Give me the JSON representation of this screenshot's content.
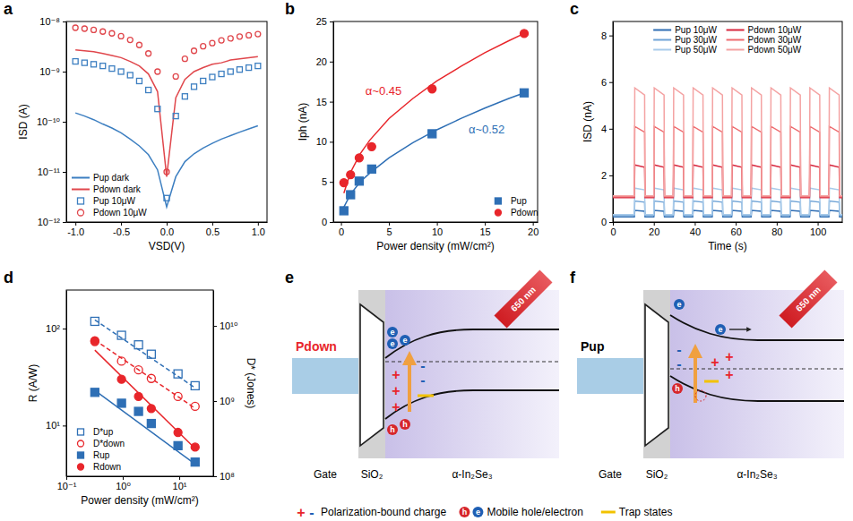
{
  "chart_data": [
    {
      "panel_label": "a",
      "type": "line",
      "xlabel": "VSD(V)",
      "ylabel": "ISD (A)",
      "log": "y",
      "xlim": [
        -1.1,
        1.1
      ],
      "xticks": [
        {
          "value": -1,
          "label": "-1.0"
        },
        -0.5,
        {
          "value": 0,
          "label": "0.0"
        },
        0.5,
        {
          "value": 1,
          "label": "1.0"
        }
      ],
      "ylim": [
        1e-12,
        1e-08
      ],
      "yticks": [
        {
          "value": 1e-12,
          "label": "10⁻¹²"
        },
        {
          "value": 1e-11,
          "label": "10⁻¹¹"
        },
        {
          "value": 1e-10,
          "label": "10⁻¹⁰"
        },
        {
          "value": 1e-09,
          "label": "10⁻⁹"
        },
        {
          "value": 1e-08,
          "label": "10⁻⁸"
        }
      ],
      "legend": "lower left",
      "x": [
        -1,
        -0.9,
        -0.8,
        -0.7,
        -0.6,
        -0.5,
        -0.4,
        -0.3,
        -0.2,
        -0.1,
        0,
        0.1,
        0.2,
        0.3,
        0.4,
        0.5,
        0.6,
        0.7,
        0.8,
        0.9,
        1
      ],
      "series": [
        {
          "name": "Pup dark",
          "color": "#3d7fc1",
          "type": "line",
          "line_style": "solid",
          "values": [
            1.5e-10,
            1.3e-10,
            1.1e-10,
            9e-11,
            7.5e-11,
            6e-11,
            4.5e-11,
            3.3e-11,
            2.2e-11,
            1.1e-11,
            2e-12,
            8e-12,
            1.6e-11,
            2.3e-11,
            3e-11,
            3.7e-11,
            4.5e-11,
            5.3e-11,
            6.2e-11,
            7.2e-11,
            8.3e-11
          ]
        },
        {
          "name": "Pdown dark",
          "color": "#e0474c",
          "type": "line",
          "line_style": "solid",
          "values": [
            2.7e-09,
            2.6e-09,
            2.5e-09,
            2.3e-09,
            2.1e-09,
            1.9e-09,
            1.6e-09,
            1.3e-09,
            9e-10,
            4e-10,
            8e-12,
            3e-10,
            7e-10,
            1e-09,
            1.2e-09,
            1.4e-09,
            1.5e-09,
            1.7e-09,
            1.8e-09,
            1.9e-09,
            2e-09
          ]
        },
        {
          "name": "Pup 10μW",
          "color": "#3d7fc1",
          "type": "scatter",
          "marker": "open-square",
          "values": [
            1.6e-09,
            1.5e-09,
            1.4e-09,
            1.3e-09,
            1.15e-09,
            1e-09,
            8.5e-10,
            6.5e-10,
            4.3e-10,
            1.8e-10,
            3e-12,
            1.3e-10,
            3.2e-10,
            5e-10,
            6.5e-10,
            7.8e-10,
            9e-10,
            1e-09,
            1.1e-09,
            1.2e-09,
            1.3e-09
          ]
        },
        {
          "name": "Pdown 10μW",
          "color": "#e0474c",
          "type": "scatter",
          "marker": "open-circle",
          "values": [
            7.5e-09,
            7.2e-09,
            6.8e-09,
            6.3e-09,
            5.8e-09,
            5.1e-09,
            4.3e-09,
            3.4e-09,
            2.3e-09,
            1e-09,
            1e-11,
            8e-10,
            1.8e-09,
            2.6e-09,
            3.2e-09,
            3.7e-09,
            4.2e-09,
            4.6e-09,
            5e-09,
            5.3e-09,
            5.6e-09
          ]
        }
      ]
    },
    {
      "panel_label": "b",
      "type": "scatter",
      "xlabel": "Power density (mW/cm²)",
      "ylabel": "Iph (nA)",
      "xlim": [
        -0.8,
        20.5
      ],
      "xticks": [
        0,
        5,
        10,
        15,
        20
      ],
      "ylim": [
        0,
        25
      ],
      "yticks": [
        0,
        5,
        10,
        15,
        20,
        25
      ],
      "legend": "lower right",
      "x": [
        0.3,
        1,
        1.9,
        3.2,
        9.5,
        19.1
      ],
      "series": [
        {
          "name": "Pup",
          "color": "#2e6fb5",
          "marker": "square",
          "line_style": "solid",
          "annotation": "α~0.52",
          "values": [
            1.4,
            3.4,
            5.1,
            6.6,
            11.0,
            16.1
          ],
          "fit": {
            "x": [
              0.3,
              1,
              2,
              3,
              5,
              7.5,
              10,
              12.5,
              15,
              17.5,
              19.1
            ],
            "values": [
              1.86,
              3.47,
              5.0,
              6.1,
              8.0,
              9.9,
              11.5,
              12.9,
              14.2,
              15.4,
              16.1
            ]
          }
        },
        {
          "name": "Pdown",
          "color": "#e8262b",
          "marker": "circle",
          "line_style": "solid",
          "annotation": "α~0.45",
          "values": [
            4.9,
            5.9,
            8.0,
            9.4,
            16.6,
            23.5
          ],
          "fit": {
            "x": [
              0.3,
              1,
              2,
              3,
              5,
              7.5,
              10,
              12.5,
              15,
              17.5,
              19.1
            ],
            "values": [
              3.6,
              6.2,
              8.5,
              10.2,
              12.9,
              15.4,
              17.6,
              19.4,
              21.1,
              22.6,
              23.5
            ]
          }
        }
      ]
    },
    {
      "panel_label": "c",
      "type": "line",
      "xlabel": "Time (s)",
      "ylabel": "ISD (nA)",
      "xlim": [
        0,
        112
      ],
      "xticks": [
        0,
        20,
        40,
        60,
        80,
        100
      ],
      "ylim": [
        0,
        8.6
      ],
      "yticks": [
        0,
        2,
        4,
        6,
        8
      ],
      "legend": "top",
      "x": [
        0,
        10.5,
        10.7,
        15.5,
        15.7,
        20,
        20.2,
        25,
        25.2,
        29.5,
        29.7,
        34.5,
        34.7,
        39,
        39.2,
        44,
        44.2,
        48.5,
        48.7,
        53.5,
        53.7,
        58,
        58.2,
        63,
        63.2,
        67.5,
        67.7,
        72.5,
        72.7,
        77,
        77.2,
        82,
        82.2,
        86.5,
        86.7,
        91.5,
        91.7,
        96,
        96.2,
        101,
        101.2,
        105.5,
        105.7,
        110.5,
        110.7,
        112
      ],
      "series": [
        {
          "name": "Pup 10μW",
          "color": "#2f6db3",
          "line_style": "solid",
          "values": [
            0.22,
            0.22,
            0.5,
            0.46,
            0.22,
            0.22,
            0.5,
            0.46,
            0.22,
            0.22,
            0.5,
            0.46,
            0.22,
            0.22,
            0.5,
            0.46,
            0.22,
            0.22,
            0.5,
            0.46,
            0.22,
            0.22,
            0.5,
            0.46,
            0.22,
            0.22,
            0.5,
            0.46,
            0.22,
            0.22,
            0.5,
            0.46,
            0.22,
            0.22,
            0.5,
            0.46,
            0.22,
            0.22,
            0.5,
            0.46,
            0.22,
            0.22,
            0.5,
            0.46,
            0.22,
            0.22
          ]
        },
        {
          "name": "Pup 30μW",
          "color": "#6fa3d6",
          "line_style": "solid",
          "values": [
            0.28,
            0.28,
            0.9,
            0.85,
            0.28,
            0.28,
            0.9,
            0.85,
            0.28,
            0.28,
            0.9,
            0.85,
            0.28,
            0.28,
            0.9,
            0.85,
            0.28,
            0.28,
            0.9,
            0.85,
            0.28,
            0.28,
            0.9,
            0.85,
            0.28,
            0.28,
            0.9,
            0.85,
            0.28,
            0.28,
            0.9,
            0.85,
            0.28,
            0.28,
            0.9,
            0.85,
            0.28,
            0.28,
            0.9,
            0.85,
            0.28,
            0.28,
            0.9,
            0.85,
            0.28,
            0.28
          ]
        },
        {
          "name": "Pup 50μW",
          "color": "#a9cbea",
          "line_style": "solid",
          "values": [
            0.32,
            0.32,
            1.45,
            1.38,
            0.32,
            0.32,
            1.45,
            1.38,
            0.32,
            0.32,
            1.45,
            1.38,
            0.32,
            0.32,
            1.45,
            1.38,
            0.32,
            0.32,
            1.45,
            1.38,
            0.32,
            0.32,
            1.45,
            1.38,
            0.32,
            0.32,
            1.45,
            1.38,
            0.32,
            0.32,
            1.45,
            1.38,
            0.32,
            0.32,
            1.45,
            1.38,
            0.32,
            0.32,
            1.45,
            1.38,
            0.32,
            0.32,
            1.45,
            1.38,
            0.32,
            0.32
          ]
        },
        {
          "name": "Pdown 10μW",
          "color": "#d7263d",
          "line_style": "solid",
          "values": [
            1.05,
            1.05,
            2.45,
            2.35,
            1.05,
            1.05,
            2.45,
            2.35,
            1.05,
            1.05,
            2.45,
            2.35,
            1.05,
            1.05,
            2.45,
            2.35,
            1.05,
            1.05,
            2.45,
            2.35,
            1.05,
            1.05,
            2.45,
            2.35,
            1.05,
            1.05,
            2.45,
            2.35,
            1.05,
            1.05,
            2.45,
            2.35,
            1.05,
            1.05,
            2.45,
            2.35,
            1.05,
            1.05,
            2.45,
            2.35,
            1.05,
            1.05,
            2.45,
            2.35,
            1.05,
            1.05
          ]
        },
        {
          "name": "Pdown 30μW",
          "color": "#ee6b6e",
          "line_style": "solid",
          "values": [
            1.08,
            1.08,
            4.1,
            3.85,
            1.08,
            1.08,
            4.1,
            3.85,
            1.08,
            1.08,
            4.1,
            3.85,
            1.08,
            1.08,
            4.1,
            3.85,
            1.08,
            1.08,
            4.1,
            3.85,
            1.08,
            1.08,
            4.1,
            3.85,
            1.08,
            1.08,
            4.1,
            3.85,
            1.08,
            1.08,
            4.1,
            3.85,
            1.08,
            1.08,
            4.1,
            3.85,
            1.08,
            1.08,
            4.1,
            3.85,
            1.08,
            1.08,
            4.1,
            3.85,
            1.08,
            1.08
          ]
        },
        {
          "name": "Pdown 50μW",
          "color": "#f4a3a3",
          "line_style": "solid",
          "values": [
            1.12,
            1.12,
            5.75,
            5.45,
            1.12,
            1.12,
            5.75,
            5.45,
            1.12,
            1.12,
            5.75,
            5.45,
            1.12,
            1.12,
            5.75,
            5.45,
            1.12,
            1.12,
            5.75,
            5.45,
            1.12,
            1.12,
            5.75,
            5.45,
            1.12,
            1.12,
            5.75,
            5.45,
            1.12,
            1.12,
            5.75,
            5.45,
            1.12,
            1.12,
            5.75,
            5.45,
            1.12,
            1.12,
            5.75,
            5.45,
            1.12,
            1.12,
            5.75,
            5.45,
            1.12,
            1.12
          ]
        }
      ]
    },
    {
      "panel_label": "d",
      "type": "scatter",
      "log": true,
      "xlabel": "Power density (mW/cm²)",
      "ylabel": "R (A/W)",
      "y2label": "D* (Jones)",
      "xlim": [
        0.1,
        40
      ],
      "xticks": [
        {
          "value": 0.1,
          "label": "10⁻¹"
        },
        {
          "value": 1,
          "label": "10⁰"
        },
        {
          "value": 10,
          "label": "10¹"
        }
      ],
      "ylim": [
        3,
        250
      ],
      "yticks": [
        {
          "value": 10,
          "label": "10¹"
        },
        {
          "value": 100,
          "label": "10²"
        }
      ],
      "y2lim": [
        100000000.0,
        30000000000.0
      ],
      "y2ticks": [
        {
          "value": 100000000.0,
          "label": "10⁸"
        },
        {
          "value": 1000000000.0,
          "label": "10⁹"
        },
        {
          "value": 10000000000.0,
          "label": "10¹⁰"
        }
      ],
      "legend": "lower left",
      "x": [
        0.32,
        0.95,
        1.9,
        3.2,
        9.5,
        19.1
      ],
      "series": [
        {
          "name": "D*up",
          "color": "#2e6fb5",
          "marker": "open-square",
          "line_style": "dashed",
          "axis": "y2",
          "values": [
            11500000000.0,
            7500000000.0,
            5600000000.0,
            4200000000.0,
            2300000000.0,
            1600000000.0
          ],
          "fit": {
            "x": [
              0.32,
              19.1
            ],
            "values": [
              12000000000.0,
              1500000000.0
            ]
          }
        },
        {
          "name": "D*down",
          "color": "#e8262b",
          "marker": "open-circle",
          "line_style": "dashed",
          "axis": "y2",
          "values": [
            6200000000.0,
            3400000000.0,
            2600000000.0,
            2000000000.0,
            1150000000.0,
            850000000.0
          ],
          "fit": {
            "x": [
              0.32,
              19.1
            ],
            "values": [
              6500000000.0,
              800000000.0
            ]
          }
        },
        {
          "name": "Rup",
          "color": "#2e6fb5",
          "marker": "square",
          "line_style": "solid",
          "values": [
            22,
            17,
            14,
            10.5,
            6.2,
            4.2
          ],
          "fit": {
            "x": [
              0.32,
              19.1
            ],
            "values": [
              23,
              4.0
            ]
          }
        },
        {
          "name": "Rdown",
          "color": "#e8262b",
          "marker": "circle",
          "line_style": "solid",
          "values": [
            75,
            30,
            20,
            15,
            8.5,
            6
          ],
          "fit": {
            "x": [
              0.32,
              19.1
            ],
            "values": [
              60,
              5.8
            ]
          }
        }
      ]
    }
  ],
  "diagrams": [
    {
      "panel_label": "e",
      "polarization": "Pdown",
      "color": "#e8262b",
      "layers": [
        "Gate",
        "SiO₂",
        "α-In₂Se₃"
      ],
      "light": "650 nm"
    },
    {
      "panel_label": "f",
      "polarization": "Pup",
      "color": "#000000",
      "layers": [
        "Gate",
        "SiO₂",
        "α-In₂Se₃"
      ],
      "light": "650 nm"
    }
  ],
  "diagram_symbols": {
    "plus": "+",
    "minus": "-",
    "hole": "h",
    "electron": "e"
  },
  "diagram_legend": [
    "Polarization-bound charge",
    "Mobile hole/electron",
    "Trap states"
  ]
}
